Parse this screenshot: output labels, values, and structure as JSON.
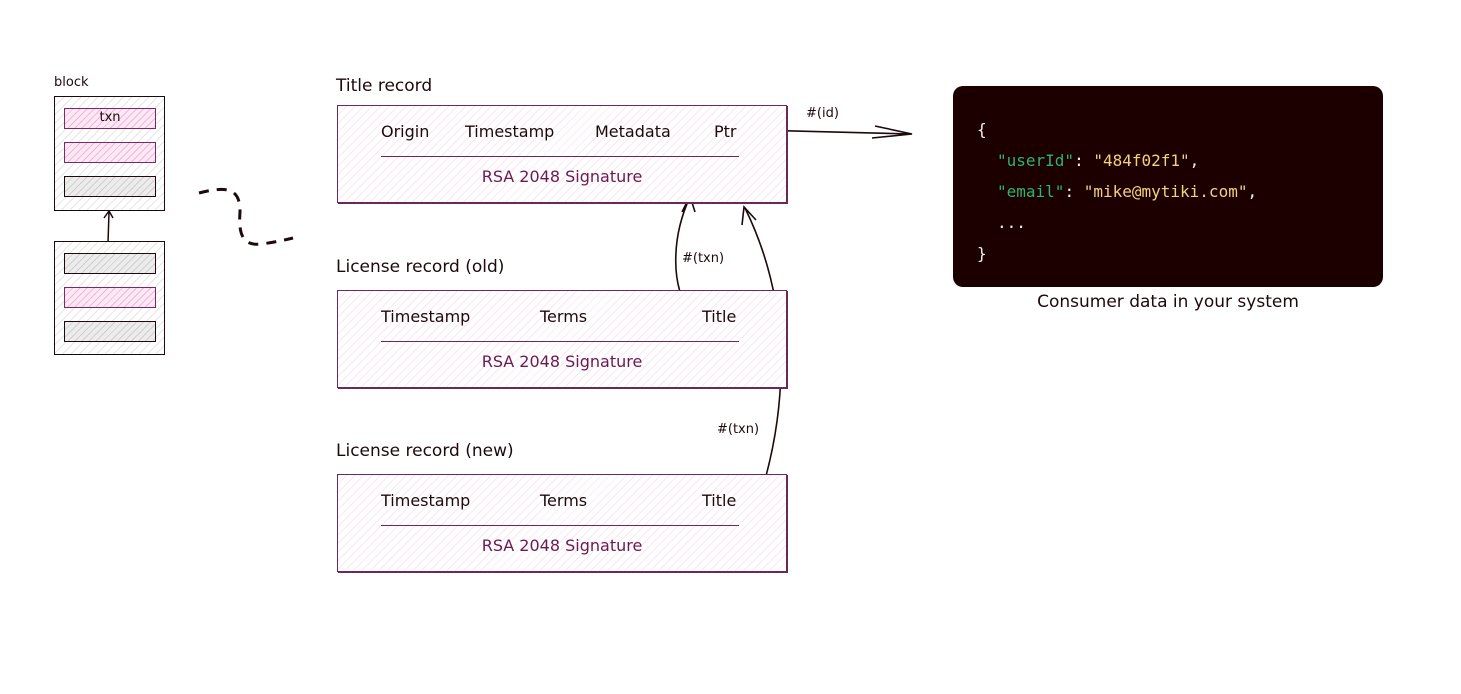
{
  "block": {
    "label": "block",
    "txn_label": "txn"
  },
  "title_record": {
    "heading": "Title record",
    "fields": [
      "Origin",
      "Timestamp",
      "Metadata",
      "Ptr"
    ],
    "signature": "RSA 2048 Signature"
  },
  "license_old": {
    "heading": "License record (old)",
    "fields": [
      "Timestamp",
      "Terms",
      "Title"
    ],
    "signature": "RSA 2048 Signature"
  },
  "license_new": {
    "heading": "License record (new)",
    "fields": [
      "Timestamp",
      "Terms",
      "Title"
    ],
    "signature": "RSA 2048 Signature"
  },
  "arrows": {
    "id_label": "#(id)",
    "txn_label_1": "#(txn)",
    "txn_label_2": "#(txn)"
  },
  "consumer": {
    "open": "{",
    "key1": "\"userId\"",
    "val1": "\"484f02f1\"",
    "key2": "\"email\"",
    "val2": "\"mike@mytiki.com\"",
    "ellipsis": "...",
    "close": "}",
    "caption": "Consumer data in your system"
  },
  "colors": {
    "record_border": "#6b2a55",
    "signature": "#6b1a4f",
    "code_bg": "#1c0000",
    "json_key": "#2fb36a",
    "json_value": "#f2d27a"
  }
}
